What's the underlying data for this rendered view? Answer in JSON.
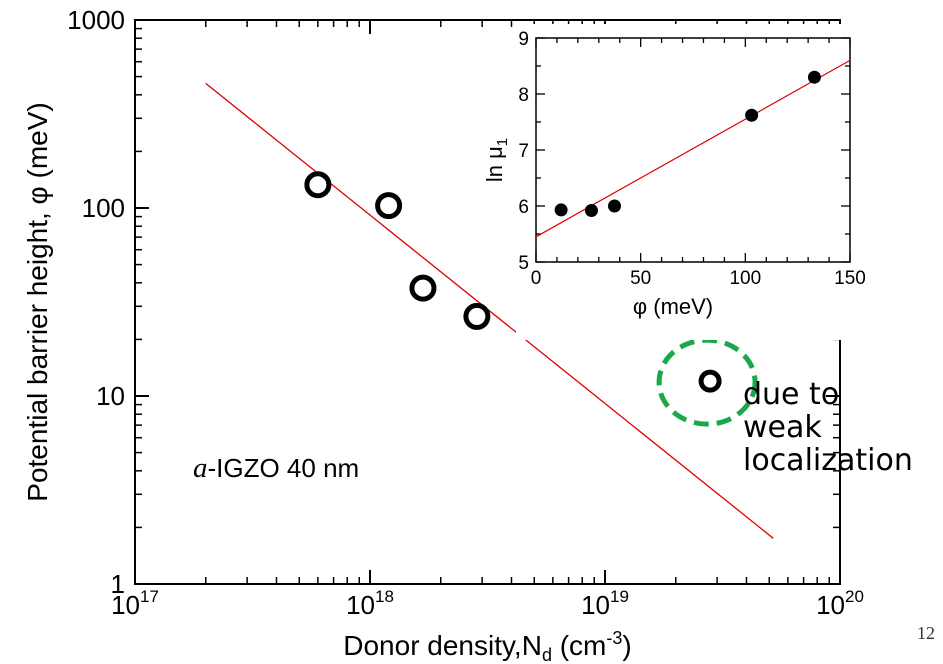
{
  "chart_data": [
    {
      "type": "scatter",
      "xlabel": "Donor density,N",
      "xlabel_sub": "d",
      "xlabel_unit_open": " (cm",
      "xlabel_unit_sup": "-3",
      "xlabel_unit_close": ")",
      "ylabel": "Potential barrier height, φ (meV)",
      "x_scale": "log",
      "y_scale": "log",
      "xlim": [
        1e+17,
        1e+20
      ],
      "ylim": [
        1,
        1000
      ],
      "x_ticks": [
        {
          "value": 1e+17,
          "base": "10",
          "exp": "17"
        },
        {
          "value": 1e+18,
          "base": "10",
          "exp": "18"
        },
        {
          "value": 1e+19,
          "base": "10",
          "exp": "19"
        },
        {
          "value": 1e+20,
          "base": "10",
          "exp": "20"
        }
      ],
      "y_ticks": [
        {
          "value": 1,
          "label": "1"
        },
        {
          "value": 10,
          "label": "10"
        },
        {
          "value": 100,
          "label": "100"
        },
        {
          "value": 1000,
          "label": "1000"
        }
      ],
      "points": [
        {
          "x": 6e+17,
          "y": 133
        },
        {
          "x": 1.2e+18,
          "y": 103
        },
        {
          "x": 1.68e+18,
          "y": 37.5
        },
        {
          "x": 2.85e+18,
          "y": 26.5
        },
        {
          "x": 2.8e+19,
          "y": 12
        }
      ],
      "fit_line": {
        "x": [
          2e+17,
          5.2e+19
        ],
        "y": [
          460,
          1.75
        ],
        "color": "#e00000"
      },
      "highlight": {
        "x": 2.8e+19,
        "y": 12,
        "color": "#1aa84a"
      }
    },
    {
      "type": "scatter",
      "xlabel": "φ (meV)",
      "ylabel": "ln μ",
      "ylabel_sub": "1",
      "xlim": [
        0,
        150
      ],
      "ylim": [
        5,
        9
      ],
      "x_ticks": [
        0,
        50,
        100,
        150
      ],
      "y_ticks": [
        5,
        6,
        7,
        8,
        9
      ],
      "points": [
        {
          "x": 12,
          "y": 5.93
        },
        {
          "x": 26.5,
          "y": 5.92
        },
        {
          "x": 37.5,
          "y": 6.0
        },
        {
          "x": 103,
          "y": 7.62
        },
        {
          "x": 133,
          "y": 8.3
        }
      ],
      "fit_line": {
        "x": [
          0,
          150
        ],
        "y": [
          5.45,
          8.6
        ],
        "color": "#e00000"
      }
    }
  ],
  "annotations": {
    "sample_prefix": "a",
    "sample_rest": "-IGZO 40 nm",
    "weak_line1": "due to",
    "weak_line2": "weak",
    "weak_line3": "localization"
  },
  "page_number": "12"
}
